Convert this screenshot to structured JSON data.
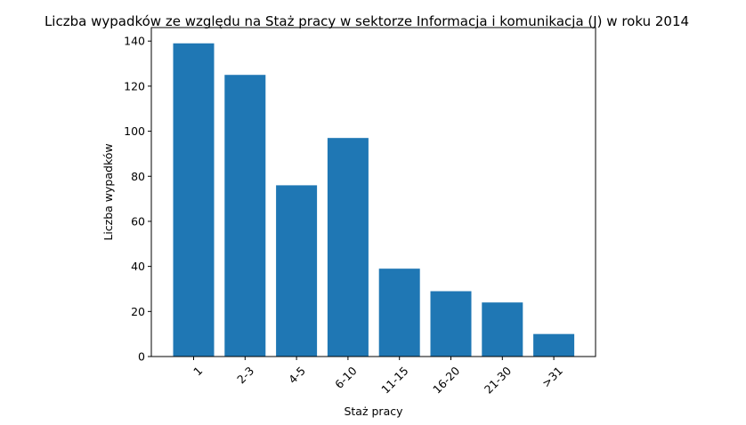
{
  "chart_data": {
    "type": "bar",
    "title": "Liczba wypadków ze względu na Staż pracy w sektorze Informacja i komunikacja (J)   w roku 2014",
    "xlabel": "Staż pracy",
    "ylabel": "Liczba wypadków",
    "categories": [
      "1",
      "2-3",
      "4-5",
      "6-10",
      "11-15",
      "16-20",
      "21-30",
      ">31"
    ],
    "values": [
      139,
      125,
      76,
      97,
      39,
      29,
      24,
      10
    ],
    "ylim": [
      0,
      146
    ],
    "yticks": [
      0,
      20,
      40,
      60,
      80,
      100,
      120,
      140
    ],
    "bar_color": "#1f77b4",
    "grid": false,
    "xtick_rotation": 45
  }
}
